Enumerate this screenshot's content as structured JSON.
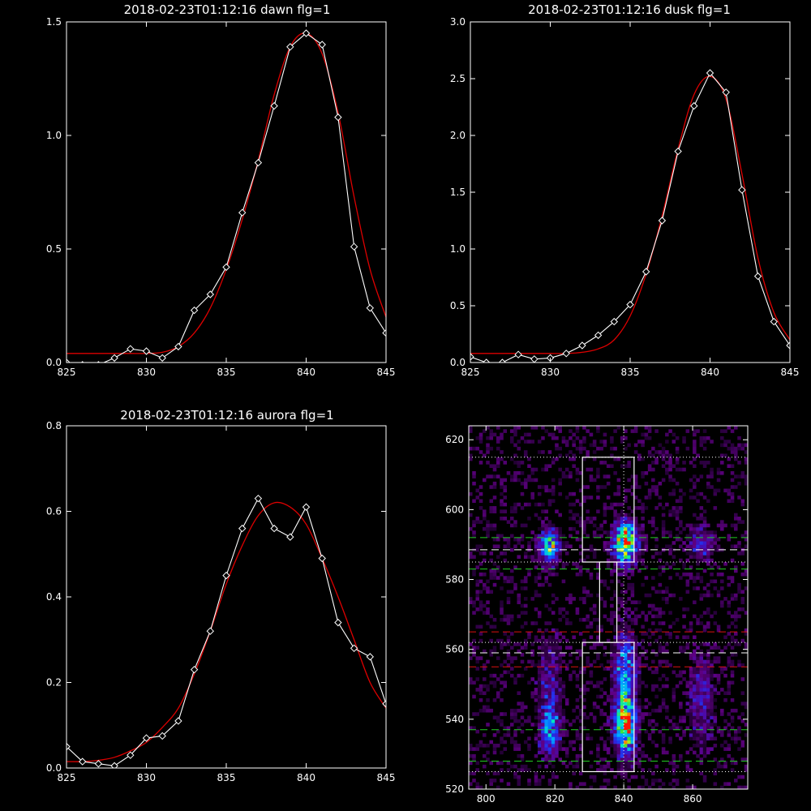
{
  "colors": {
    "background": "#000000",
    "data": "#ffffff",
    "fit": "#dd0000",
    "frame": "#ffffff",
    "guide_green": "#22cc22",
    "guide_red": "#dd1111",
    "guide_white": "#ffffff"
  },
  "chart_data": [
    {
      "type": "line",
      "title": "2018-02-23T01:12:16 dawn flg=1",
      "xlim": [
        825,
        845
      ],
      "ylim": [
        0,
        1.5
      ],
      "xticks": [
        "825",
        "830",
        "835",
        "840",
        "845"
      ],
      "yticks": [
        "0.0",
        "0.5",
        "1.0",
        "1.5"
      ],
      "grid": false,
      "series": [
        {
          "role": "data",
          "marker": "diamond",
          "color": "#ffffff",
          "x": [
            825,
            826,
            827,
            828,
            829,
            830,
            831,
            832,
            833,
            834,
            835,
            836,
            837,
            838,
            839,
            840,
            841,
            842,
            843,
            844,
            845
          ],
          "y": [
            0.0,
            -0.01,
            -0.01,
            0.02,
            0.06,
            0.05,
            0.02,
            0.07,
            0.23,
            0.3,
            0.42,
            0.66,
            0.88,
            1.13,
            1.39,
            1.45,
            1.4,
            1.08,
            0.51,
            0.24,
            0.13
          ]
        },
        {
          "role": "fit",
          "color": "#dd0000",
          "x": [
            825,
            826,
            827,
            828,
            829,
            830,
            831,
            832,
            833,
            834,
            835,
            836,
            837,
            838,
            839,
            840,
            841,
            842,
            843,
            844,
            845
          ],
          "y": [
            0.04,
            0.04,
            0.04,
            0.04,
            0.04,
            0.04,
            0.045,
            0.07,
            0.13,
            0.24,
            0.41,
            0.63,
            0.89,
            1.18,
            1.39,
            1.45,
            1.36,
            1.1,
            0.73,
            0.41,
            0.2
          ]
        }
      ]
    },
    {
      "type": "line",
      "title": "2018-02-23T01:12:16 dusk flg=1",
      "xlim": [
        825,
        845
      ],
      "ylim": [
        0,
        3.0
      ],
      "xticks": [
        "825",
        "830",
        "835",
        "840",
        "845"
      ],
      "yticks": [
        "0.0",
        "0.5",
        "1.0",
        "1.5",
        "2.0",
        "2.5",
        "3.0"
      ],
      "grid": false,
      "series": [
        {
          "role": "data",
          "marker": "diamond",
          "color": "#ffffff",
          "x": [
            825,
            826,
            827,
            828,
            829,
            830,
            831,
            832,
            833,
            834,
            835,
            836,
            837,
            838,
            839,
            840,
            841,
            842,
            843,
            844,
            845
          ],
          "y": [
            0.05,
            0.0,
            0.0,
            0.07,
            0.03,
            0.04,
            0.08,
            0.15,
            0.24,
            0.36,
            0.51,
            0.8,
            1.25,
            1.86,
            2.26,
            2.55,
            2.38,
            1.52,
            0.76,
            0.36,
            0.15
          ]
        },
        {
          "role": "fit",
          "color": "#dd0000",
          "x": [
            825,
            826,
            827,
            828,
            829,
            830,
            831,
            832,
            833,
            834,
            835,
            836,
            837,
            838,
            839,
            840,
            841,
            842,
            843,
            844,
            845
          ],
          "y": [
            0.08,
            0.08,
            0.08,
            0.08,
            0.08,
            0.08,
            0.08,
            0.09,
            0.12,
            0.2,
            0.41,
            0.78,
            1.29,
            1.88,
            2.36,
            2.52,
            2.32,
            1.66,
            0.92,
            0.44,
            0.2
          ]
        }
      ]
    },
    {
      "type": "line",
      "title": "2018-02-23T01:12:16 aurora flg=1",
      "xlim": [
        825,
        845
      ],
      "ylim": [
        0,
        0.8
      ],
      "xticks": [
        "825",
        "830",
        "835",
        "840",
        "845"
      ],
      "yticks": [
        "0.0",
        "0.2",
        "0.4",
        "0.6",
        "0.8"
      ],
      "grid": false,
      "series": [
        {
          "role": "data",
          "marker": "diamond",
          "color": "#ffffff",
          "x": [
            825,
            826,
            827,
            828,
            829,
            830,
            831,
            832,
            833,
            834,
            835,
            836,
            837,
            838,
            839,
            840,
            841,
            842,
            843,
            844,
            845
          ],
          "y": [
            0.05,
            0.015,
            0.01,
            0.005,
            0.03,
            0.07,
            0.075,
            0.11,
            0.23,
            0.32,
            0.45,
            0.56,
            0.63,
            0.56,
            0.54,
            0.61,
            0.49,
            0.34,
            0.28,
            0.26,
            0.15
          ]
        },
        {
          "role": "fit",
          "color": "#dd0000",
          "x": [
            825,
            826,
            827,
            828,
            829,
            830,
            831,
            832,
            833,
            834,
            835,
            836,
            837,
            838,
            839,
            840,
            841,
            842,
            843,
            844,
            845
          ],
          "y": [
            0.015,
            0.015,
            0.018,
            0.025,
            0.04,
            0.06,
            0.095,
            0.14,
            0.22,
            0.32,
            0.43,
            0.52,
            0.59,
            0.62,
            0.61,
            0.57,
            0.49,
            0.4,
            0.3,
            0.2,
            0.14
          ]
        }
      ]
    },
    {
      "type": "heatmap",
      "title": "",
      "xlim": [
        795,
        876
      ],
      "ylim": [
        520,
        624
      ],
      "xticks": [
        "800",
        "820",
        "840",
        "860"
      ],
      "yticks": [
        "520",
        "540",
        "560",
        "580",
        "600",
        "620"
      ],
      "grid": false,
      "emission_blobs": [
        {
          "x": 818,
          "y": 589,
          "sx": 2.0,
          "sy": 3.5,
          "amp": 0.6
        },
        {
          "x": 840,
          "y": 590,
          "sx": 2.3,
          "sy": 4.0,
          "amp": 1.0
        },
        {
          "x": 862,
          "y": 590,
          "sx": 2.5,
          "sy": 3.0,
          "amp": 0.32
        },
        {
          "x": 818,
          "y": 536,
          "sx": 2.0,
          "sy": 5.0,
          "amp": 0.5
        },
        {
          "x": 818,
          "y": 552,
          "sx": 2.5,
          "sy": 8.0,
          "amp": 0.22
        },
        {
          "x": 840,
          "y": 537,
          "sx": 2.2,
          "sy": 5.5,
          "amp": 0.85
        },
        {
          "x": 840,
          "y": 553,
          "sx": 2.3,
          "sy": 8.0,
          "amp": 0.5
        },
        {
          "x": 862,
          "y": 545,
          "sx": 2.5,
          "sy": 9.0,
          "amp": 0.25
        }
      ],
      "hlines": [
        {
          "y": 615,
          "color": "#ffffff",
          "style": "dotted"
        },
        {
          "y": 592,
          "color": "#22cc22",
          "style": "dashed"
        },
        {
          "y": 588.5,
          "color": "#ffffff",
          "style": "dashed"
        },
        {
          "y": 585,
          "color": "#ffffff",
          "style": "dotted"
        },
        {
          "y": 583,
          "color": "#22cc22",
          "style": "dashed"
        },
        {
          "y": 565,
          "color": "#dd1111",
          "style": "dashed"
        },
        {
          "y": 562,
          "color": "#ffffff",
          "style": "dotted"
        },
        {
          "y": 559,
          "color": "#ffffff",
          "style": "dashed"
        },
        {
          "y": 555,
          "color": "#dd1111",
          "style": "dashed"
        },
        {
          "y": 537,
          "color": "#22cc22",
          "style": "dashed"
        },
        {
          "y": 528,
          "color": "#22cc22",
          "style": "dashed"
        },
        {
          "y": 525,
          "color": "#ffffff",
          "style": "dotted"
        }
      ],
      "vline": {
        "x": 840,
        "color": "#ffffff",
        "style": "dotted"
      },
      "boxes": [
        {
          "x": [
            828,
            843
          ],
          "y": [
            585,
            615
          ]
        },
        {
          "x": [
            828,
            843
          ],
          "y": [
            525,
            562
          ]
        },
        {
          "x": [
            833,
            838
          ],
          "y": [
            562,
            585
          ]
        }
      ]
    }
  ]
}
